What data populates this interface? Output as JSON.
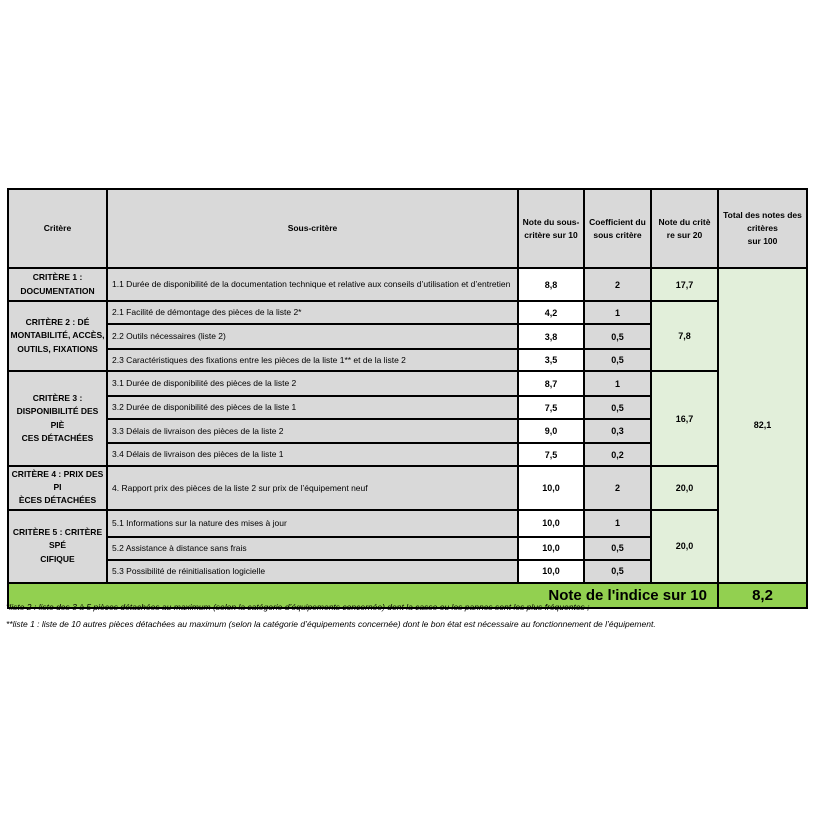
{
  "colors": {
    "cell_gray": "#d9d9d9",
    "pale_green": "#e2efda",
    "bright_green": "#92d050",
    "border": "#000000"
  },
  "table": {
    "headers": {
      "critere": "Critère",
      "sous_critere": "Sous-critère",
      "note_sous_critere": "Note du sous-\ncritère sur 10",
      "coefficient": "Coefficient du\nsous critère",
      "note_critere": "Note du critè\nre sur 20",
      "total": "Total des notes des\ncritères\nsur 100"
    },
    "groups": [
      {
        "critere": "CRITÈRE 1 :\nDOCUMENTATION",
        "note_sur_20": "17,7",
        "rows": [
          {
            "sous_critere": "1.1 Durée de disponibilité de la documentation technique et relative aux conseils d’utilisation et d’entretien",
            "note_sur_10": "8,8",
            "coefficient": "2"
          }
        ]
      },
      {
        "critere": "CRITÈRE 2 : DÉ\nMONTABILITÉ, ACCÈS,\nOUTILS, FIXATIONS",
        "note_sur_20": "7,8",
        "rows": [
          {
            "sous_critere": "2.1 Facilité de démontage des pièces de la liste 2*",
            "note_sur_10": "4,2",
            "coefficient": "1"
          },
          {
            "sous_critere": "2.2 Outils nécessaires (liste 2)",
            "note_sur_10": "3,8",
            "coefficient": "0,5"
          },
          {
            "sous_critere": "2.3 Caractéristiques des fixations entre les pièces de la liste 1** et de la liste 2",
            "note_sur_10": "3,5",
            "coefficient": "0,5"
          }
        ]
      },
      {
        "critere": "CRITÈRE 3 :\nDISPONIBILITÉ DES PIÈ\nCES DÉTACHÉES",
        "note_sur_20": "16,7",
        "rows": [
          {
            "sous_critere": "3.1 Durée de disponibilité des pièces de la liste 2",
            "note_sur_10": "8,7",
            "coefficient": "1"
          },
          {
            "sous_critere": "3.2 Durée de disponibilité des pièces de la liste 1",
            "note_sur_10": "7,5",
            "coefficient": "0,5"
          },
          {
            "sous_critere": "3.3 Délais de livraison des pièces de la liste 2",
            "note_sur_10": "9,0",
            "coefficient": "0,3"
          },
          {
            "sous_critere": "3.4 Délais de livraison des pièces de la liste 1",
            "note_sur_10": "7,5",
            "coefficient": "0,2"
          }
        ]
      },
      {
        "critere": "CRITÈRE 4 : PRIX DES PI\nÈCES DÉTACHÉES",
        "note_sur_20": "20,0",
        "rows": [
          {
            "sous_critere": "4. Rapport prix des pièces de la liste 2 sur prix de l’équipement neuf",
            "note_sur_10": "10,0",
            "coefficient": "2"
          }
        ]
      },
      {
        "critere": "CRITÈRE 5 : CRITÈRE SPÉ\nCIFIQUE",
        "note_sur_20": "20,0",
        "rows": [
          {
            "sous_critere": "5.1 Informations sur la nature des mises à jour",
            "note_sur_10": "10,0",
            "coefficient": "1"
          },
          {
            "sous_critere": "5.2 Assistance à distance sans frais",
            "note_sur_10": "10,0",
            "coefficient": "0,5"
          },
          {
            "sous_critere": "5.3 Possibilité de réinitialisation logicielle",
            "note_sur_10": "10,0",
            "coefficient": "0,5"
          }
        ]
      }
    ],
    "total_des_notes_sur_100": "82,1",
    "footer": {
      "label": "Note de l'indice sur 10",
      "value": "8,2"
    }
  },
  "footnotes": [
    "*liste 2 : liste des 3 à 5 pièces détachées au maximum (selon la catégorie d’équipements concernée) dont la casse ou les pannes sont les plus fréquentes ;",
    "**liste 1 : liste de 10 autres pièces détachées au maximum (selon la catégorie d’équipements concernée) dont le bon état est nécessaire au fonctionnement de l’équipement."
  ]
}
